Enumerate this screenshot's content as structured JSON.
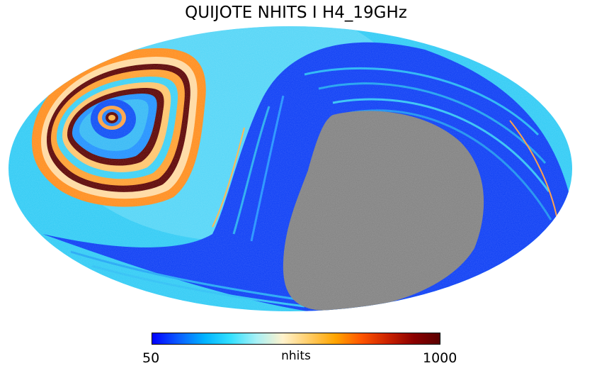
{
  "title": "QUIJOTE NHITS I H4_19GHz",
  "colorbar": {
    "min_label": "50",
    "max_label": "1000",
    "unit_label": "nhits",
    "colors": [
      "#0000ff",
      "#0a5cff",
      "#00b3ff",
      "#33e0ff",
      "#a8f0f5",
      "#fff2cc",
      "#ffcc66",
      "#ffa500",
      "#ff5500",
      "#cc2200",
      "#8b0000",
      "#5a0000"
    ]
  },
  "map": {
    "masked_color": "#808080",
    "background_tone": "#33ccff",
    "projection": "mollweide"
  }
}
